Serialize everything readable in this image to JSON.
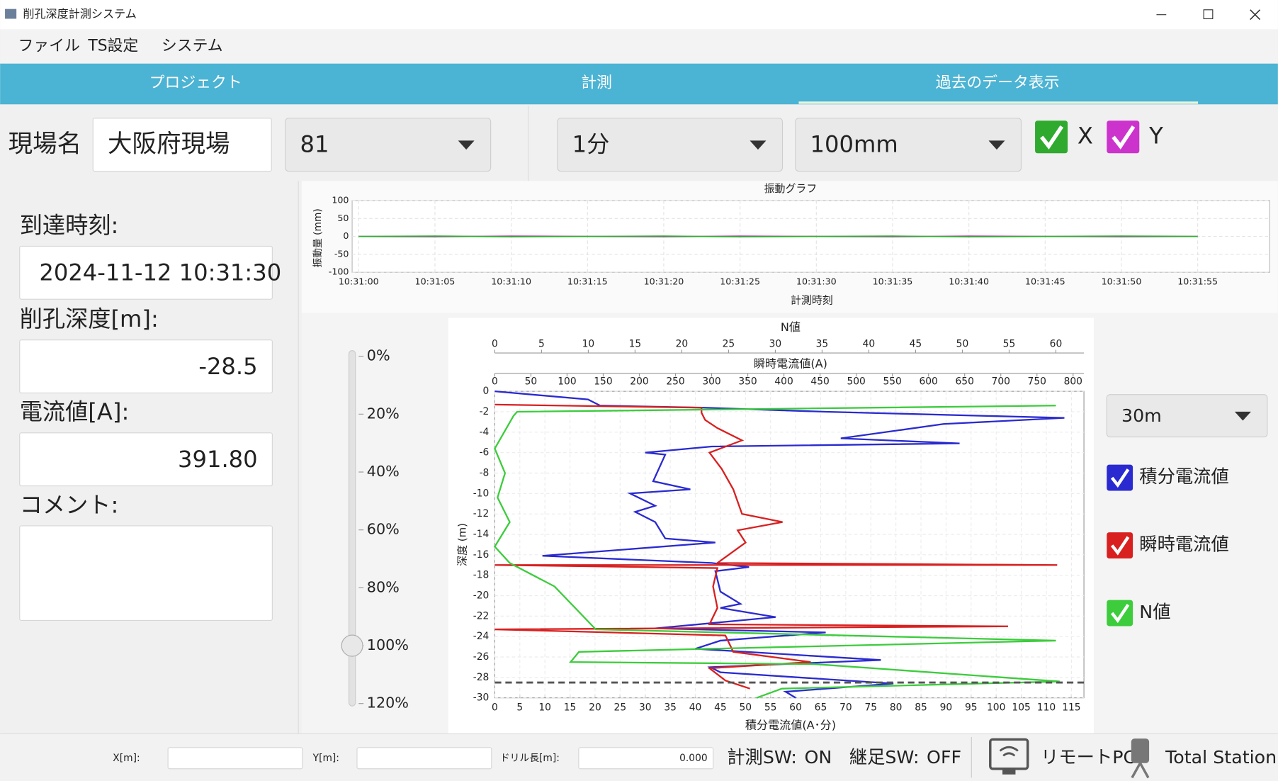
{
  "window": {
    "title": "削孔深度計測システム"
  },
  "menu": [
    "ファイル",
    "TS設定",
    "システム"
  ],
  "tabs": [
    "プロジェクト",
    "計測",
    "過去のデータ表示"
  ],
  "toolbar": {
    "site_label": "現場名",
    "site_name": "大阪府現場",
    "site_number": "81",
    "interval": "1分",
    "range": "100mm",
    "x_check": "X",
    "y_check": "Y"
  },
  "info": {
    "arrival_label": "到達時刻:",
    "arrival": "2024-11-12 10:31:30",
    "depth_label": "削孔深度[m]:",
    "depth": "-28.5",
    "current_label": "電流値[A]:",
    "current": "391.80",
    "comment_label": "コメント:"
  },
  "slider": {
    "labels": [
      "0%",
      "20%",
      "40%",
      "60%",
      "80%",
      "100%",
      "120%"
    ],
    "lim": [
      0,
      120
    ],
    "value": 100
  },
  "depth_controls": {
    "scale": "30m"
  },
  "status": {
    "x_label": "X[m]:",
    "y_label": "Y[m]:",
    "drill_label": "ドリル長[m]:",
    "drill_value": "0.000",
    "sw1": "計測SW:",
    "sw1_state": "ON",
    "sw2": "継足SW:",
    "sw2_state": "OFF",
    "remote": "リモートPC",
    "ts": "Total Station"
  },
  "chart_data": [
    {
      "type": "line",
      "title": "振動グラフ",
      "y_label": "振動量 (mm)",
      "x_label": "計測時刻",
      "x": [
        "10:31:00",
        "10:31:05",
        "10:31:10",
        "10:31:15",
        "10:31:20",
        "10:31:25",
        "10:31:30",
        "10:31:35",
        "10:31:40",
        "10:31:45",
        "10:31:50",
        "10:31:55"
      ],
      "series": [
        {
          "color": "#c040c0",
          "values": [
            0,
            -1,
            1,
            0,
            -1,
            1,
            0,
            -1,
            1,
            0,
            -1,
            0
          ]
        },
        {
          "color": "#30b030",
          "values": [
            0,
            1,
            -1,
            0,
            1,
            -1,
            0,
            1,
            -1,
            0,
            1,
            0
          ]
        }
      ],
      "ylim": [
        -100,
        100
      ],
      "yticks": [
        100,
        50,
        0,
        -50,
        -100
      ],
      "grid": true
    },
    {
      "type": "depth-profile",
      "y_label": "深度 (m)",
      "ylim": [
        0,
        -30
      ],
      "yticks": [
        0,
        -2,
        -4,
        -6,
        -8,
        -10,
        -12,
        -14,
        -16,
        -18,
        -20,
        -22,
        -24,
        -26,
        -28,
        -30
      ],
      "axes": {
        "top": {
          "label": "N値",
          "lim": [
            0,
            63
          ],
          "ticks": [
            0,
            5,
            10,
            15,
            20,
            25,
            30,
            35,
            40,
            45,
            50,
            55,
            60
          ]
        },
        "middle": {
          "label": "瞬時電流値(A)",
          "lim": [
            0,
            815
          ],
          "ticks": [
            0,
            50,
            100,
            150,
            200,
            250,
            300,
            350,
            400,
            450,
            500,
            550,
            600,
            650,
            700,
            750,
            800
          ]
        },
        "bottom": {
          "label": "積分電流値(A･分)",
          "lim": [
            0,
            117.5
          ],
          "ticks": [
            0,
            5,
            10,
            15,
            20,
            25,
            30,
            35,
            40,
            45,
            50,
            55,
            60,
            65,
            70,
            75,
            80,
            85,
            90,
            95,
            100,
            105,
            110,
            115
          ]
        }
      },
      "series": [
        {
          "name": "積分電流値",
          "color": "#2a2ad0",
          "axis": "bottom",
          "values": [
            0,
            18.6,
            21,
            41.8,
            66,
            113.6,
            89.5,
            69,
            92.7,
            43.3,
            30,
            34,
            31.6,
            39,
            27,
            32,
            28,
            32,
            34,
            44,
            9.5,
            43.3,
            50.7,
            44,
            45,
            49,
            45,
            56,
            32,
            66,
            45,
            40,
            77,
            43,
            45,
            79.5,
            58,
            60
          ],
          "depth": [
            0,
            -0.8,
            -1.4,
            -1.6,
            -2,
            -2.6,
            -3.2,
            -4.6,
            -5.1,
            -5.4,
            -6,
            -6.2,
            -8.8,
            -9.6,
            -10,
            -11.2,
            -11.8,
            -12.8,
            -14.4,
            -14.8,
            -16.1,
            -16.8,
            -17.2,
            -17.6,
            -19.6,
            -20.8,
            -21.2,
            -22.1,
            -23.2,
            -23.6,
            -24.4,
            -25.2,
            -26.3,
            -27,
            -27.5,
            -28.6,
            -29.4,
            -30
          ]
        },
        {
          "name": "瞬時電流値",
          "color": "#d82020",
          "axis": "middle",
          "values": [
            0,
            286,
            286,
            291,
            308,
            342,
            297,
            314,
            330,
            342,
            398,
            336,
            347,
            308,
            778,
            0,
            308,
            302,
            308,
            297,
            710,
            0,
            319,
            330,
            437,
            297,
            319,
            353
          ],
          "depth": [
            -1.3,
            -1.6,
            -2.1,
            -2.8,
            -3.6,
            -4.8,
            -6,
            -7.6,
            -9.6,
            -12,
            -12.8,
            -13.6,
            -14.8,
            -16.8,
            -17,
            -17,
            -17.3,
            -19.1,
            -21.2,
            -22.8,
            -23,
            -23.3,
            -23.9,
            -25.5,
            -26.5,
            -27.1,
            -28.3,
            -29.1
          ]
        },
        {
          "name": "N値",
          "color": "#3ccc3c",
          "axis": "top",
          "values": [
            60,
            2.4,
            2,
            0,
            1.1,
            0.3,
            1.6,
            0,
            1.6,
            6.4,
            10.8,
            60,
            9,
            8.1,
            34.2,
            60.4,
            30.7,
            28
          ],
          "depth": [
            -1.4,
            -2,
            -2.4,
            -5.6,
            -8,
            -10.4,
            -12.8,
            -15.2,
            -16.8,
            -19.1,
            -23.3,
            -24.4,
            -25.5,
            -26.5,
            -26.7,
            -28.4,
            -29.1,
            -30
          ]
        }
      ],
      "depth_line": -28.5,
      "grid": true
    }
  ]
}
